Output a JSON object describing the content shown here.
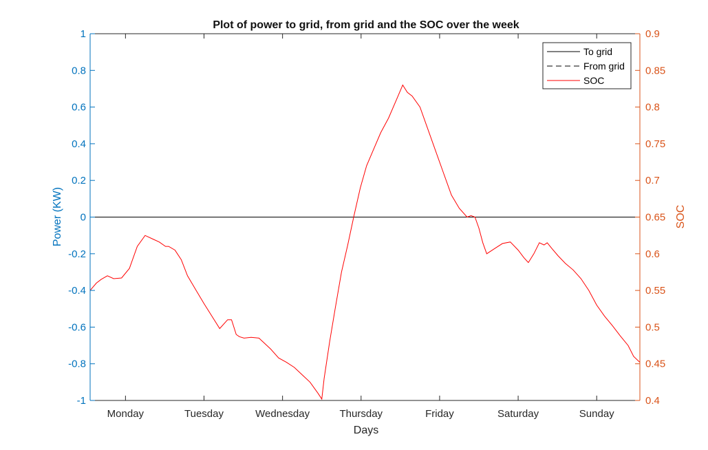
{
  "chart_data": {
    "type": "line",
    "title": "Plot of power to grid, from grid and the SOC over the week",
    "xlabel": "Days",
    "ylabel_left": "Power (KW)",
    "ylabel_right": "SOC",
    "xlim": [
      0,
      7
    ],
    "ylim_left": [
      -1,
      1
    ],
    "ylim_right": [
      0.4,
      0.9
    ],
    "x_tick_values": [
      0.45,
      1.45,
      2.45,
      3.45,
      4.45,
      5.45,
      6.45
    ],
    "x_tick_labels": [
      "Monday",
      "Tuesday",
      "Wednesday",
      "Thursday",
      "Friday",
      "Saturday",
      "Sunday"
    ],
    "y_left_ticks": [
      -1,
      -0.8,
      -0.6,
      -0.4,
      -0.2,
      0,
      0.2,
      0.4,
      0.6,
      0.8,
      1
    ],
    "y_left_tick_labels": [
      "-1",
      "-0.8",
      "-0.6",
      "-0.4",
      "-0.2",
      "0",
      "0.2",
      "0.4",
      "0.6",
      "0.8",
      "1"
    ],
    "y_right_ticks": [
      0.4,
      0.45,
      0.5,
      0.55,
      0.6,
      0.65,
      0.7,
      0.75,
      0.8,
      0.85,
      0.9
    ],
    "y_right_tick_labels": [
      "0.4",
      "0.45",
      "0.5",
      "0.55",
      "0.6",
      "0.65",
      "0.7",
      "0.75",
      "0.8",
      "0.85",
      "0.9"
    ],
    "legend_placement": "top-right",
    "grid": false,
    "series": [
      {
        "name": "To grid",
        "axis": "left",
        "style": "solid",
        "color": "#000000",
        "x": [
          0,
          7
        ],
        "y": [
          0,
          0
        ]
      },
      {
        "name": "From grid",
        "axis": "left",
        "style": "dashed",
        "color": "#000000",
        "x": [
          0,
          7
        ],
        "y": [
          0,
          0
        ]
      },
      {
        "name": "SOC",
        "axis": "right",
        "style": "solid",
        "color": "#ff0000",
        "x": [
          0,
          0.08,
          0.14,
          0.22,
          0.3,
          0.4,
          0.5,
          0.6,
          0.7,
          0.8,
          0.88,
          0.96,
          1.0,
          1.08,
          1.16,
          1.24,
          1.35,
          1.45,
          1.55,
          1.65,
          1.75,
          1.8,
          1.83,
          1.86,
          1.9,
          1.96,
          2.05,
          2.15,
          2.3,
          2.4,
          2.5,
          2.6,
          2.7,
          2.8,
          2.9,
          2.95,
          2.98,
          3.05,
          3.12,
          3.2,
          3.28,
          3.36,
          3.44,
          3.52,
          3.6,
          3.7,
          3.8,
          3.9,
          3.98,
          4.04,
          4.1,
          4.2,
          4.3,
          4.4,
          4.5,
          4.6,
          4.7,
          4.8,
          4.85,
          4.9,
          4.95,
          5.0,
          5.05,
          5.15,
          5.25,
          5.35,
          5.45,
          5.52,
          5.58,
          5.65,
          5.72,
          5.78,
          5.82,
          5.88,
          5.96,
          6.05,
          6.15,
          6.25,
          6.35,
          6.45,
          6.55,
          6.65,
          6.75,
          6.85,
          6.92,
          7.0
        ],
        "y": [
          0.55,
          0.56,
          0.565,
          0.57,
          0.566,
          0.567,
          0.58,
          0.61,
          0.625,
          0.62,
          0.616,
          0.61,
          0.61,
          0.605,
          0.592,
          0.57,
          0.55,
          0.532,
          0.515,
          0.498,
          0.51,
          0.51,
          0.5,
          0.49,
          0.487,
          0.485,
          0.486,
          0.485,
          0.47,
          0.458,
          0.452,
          0.445,
          0.435,
          0.425,
          0.41,
          0.402,
          0.43,
          0.48,
          0.525,
          0.575,
          0.612,
          0.652,
          0.69,
          0.72,
          0.74,
          0.765,
          0.785,
          0.81,
          0.83,
          0.82,
          0.815,
          0.8,
          0.77,
          0.74,
          0.71,
          0.68,
          0.662,
          0.65,
          0.652,
          0.65,
          0.635,
          0.615,
          0.6,
          0.607,
          0.614,
          0.616,
          0.605,
          0.595,
          0.588,
          0.6,
          0.615,
          0.612,
          0.615,
          0.607,
          0.597,
          0.587,
          0.578,
          0.566,
          0.55,
          0.53,
          0.515,
          0.502,
          0.488,
          0.475,
          0.46,
          0.452
        ]
      }
    ]
  }
}
